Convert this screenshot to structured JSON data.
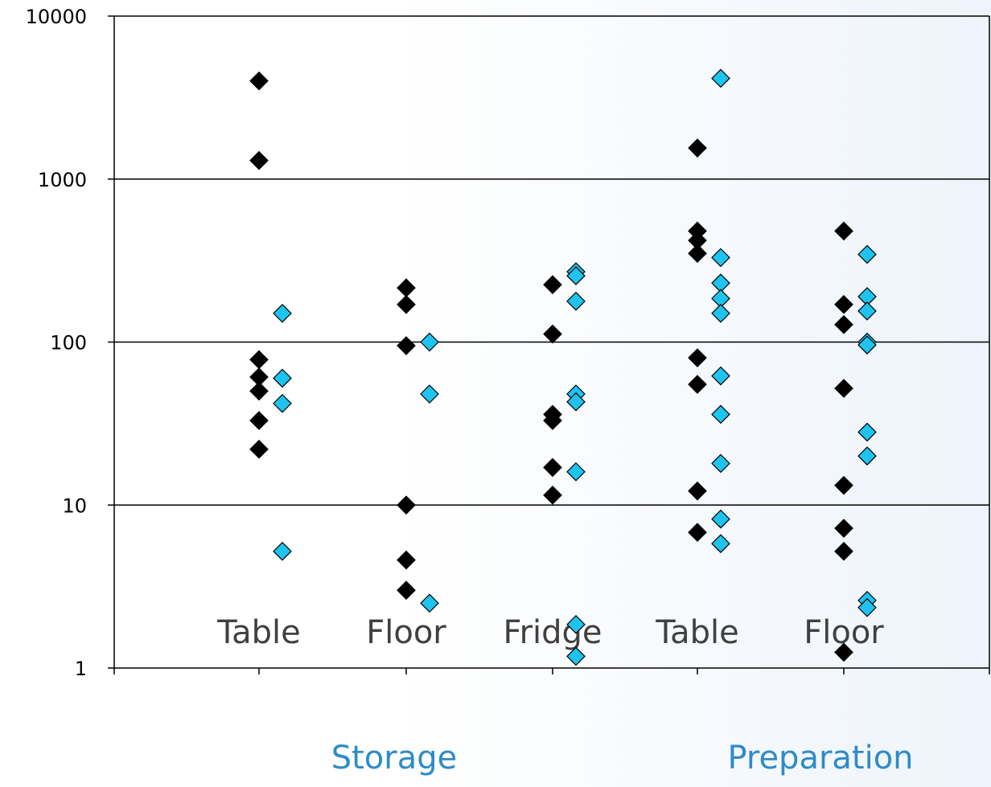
{
  "chart_data": {
    "type": "scatter",
    "title": "",
    "xlabel": "",
    "ylabel": "",
    "yscale": "log",
    "ylim": [
      1,
      10000
    ],
    "grid": "horizontal",
    "yticks": [
      {
        "value": 1,
        "label": "1"
      },
      {
        "value": 10,
        "label": "10"
      },
      {
        "value": 100,
        "label": "100"
      },
      {
        "value": 1000,
        "label": "1000"
      },
      {
        "value": 10000,
        "label": "10000"
      }
    ],
    "categories": [
      "Table",
      "Floor",
      "Fridge",
      "Table",
      "Floor"
    ],
    "category_groups": [
      {
        "label": "Storage",
        "categories": [
          0,
          1,
          2
        ]
      },
      {
        "label": "Preparation",
        "categories": [
          3,
          4
        ]
      }
    ],
    "series": [
      {
        "color": "#000000",
        "marker": "diamond",
        "values": [
          [
            4000,
            1300,
            78,
            61,
            50,
            33,
            22
          ],
          [
            215,
            170,
            95,
            10,
            4.6,
            3.0
          ],
          [
            225,
            112,
            36,
            33,
            17,
            11.5
          ],
          [
            1550,
            480,
            420,
            350,
            80,
            55,
            12.2,
            6.8
          ],
          [
            480,
            170,
            128,
            52,
            13.2,
            7.2,
            5.2,
            1.25
          ]
        ]
      },
      {
        "color": "#1ec4ef",
        "marker": "diamond",
        "values": [
          [
            150,
            60,
            42,
            5.2
          ],
          [
            100,
            48,
            2.5
          ],
          [
            270,
            255,
            178,
            48,
            43,
            16,
            1.85,
            1.18
          ],
          [
            4150,
            330,
            230,
            185,
            150,
            62,
            36,
            18,
            8.2,
            5.8
          ],
          [
            345,
            190,
            155,
            100,
            96,
            28,
            20,
            2.6,
            2.35
          ]
        ]
      }
    ]
  }
}
